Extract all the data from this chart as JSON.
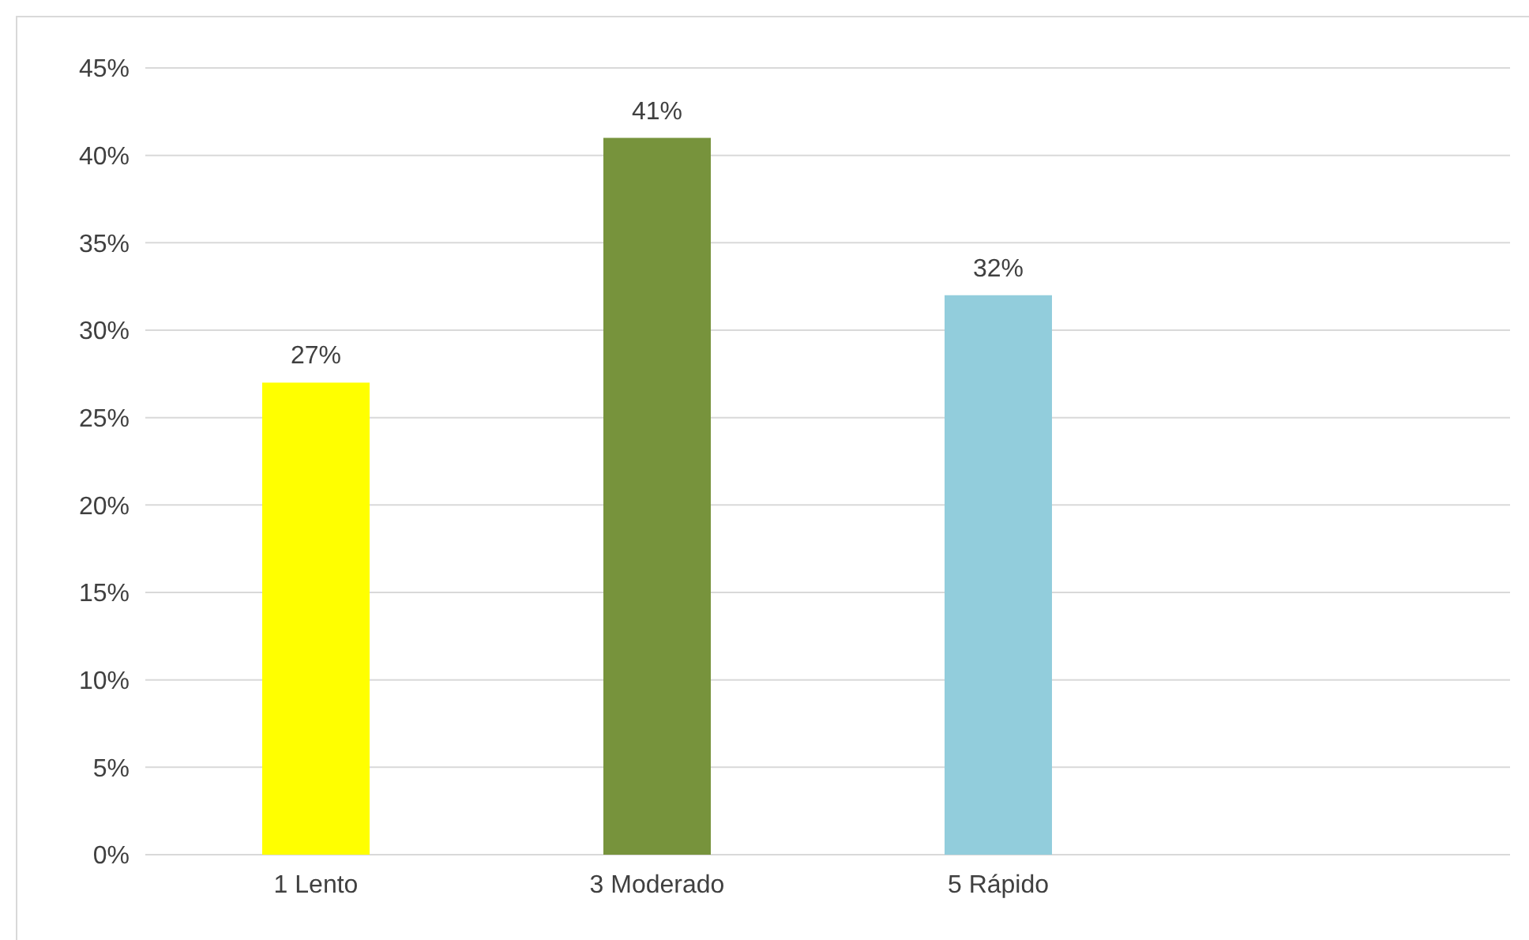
{
  "chart_data": {
    "type": "bar",
    "categories": [
      "1 Lento",
      "3 Moderado",
      "5 Rápido",
      null
    ],
    "values": [
      27,
      41,
      32,
      null
    ],
    "colors": [
      "#ffff00",
      "#77933c",
      "#92cddc",
      null
    ],
    "value_labels": [
      "27%",
      "41%",
      "32%",
      null
    ],
    "ylim": [
      0,
      45
    ],
    "yticks": [
      {
        "value": 0,
        "label": "0%"
      },
      {
        "value": 5,
        "label": "5%"
      },
      {
        "value": 10,
        "label": "10%"
      },
      {
        "value": 15,
        "label": "15%"
      },
      {
        "value": 20,
        "label": "20%"
      },
      {
        "value": 25,
        "label": "25%"
      },
      {
        "value": 30,
        "label": "30%"
      },
      {
        "value": 35,
        "label": "35%"
      },
      {
        "value": 40,
        "label": "40%"
      },
      {
        "value": 45,
        "label": "45%"
      }
    ],
    "grid": "y"
  }
}
